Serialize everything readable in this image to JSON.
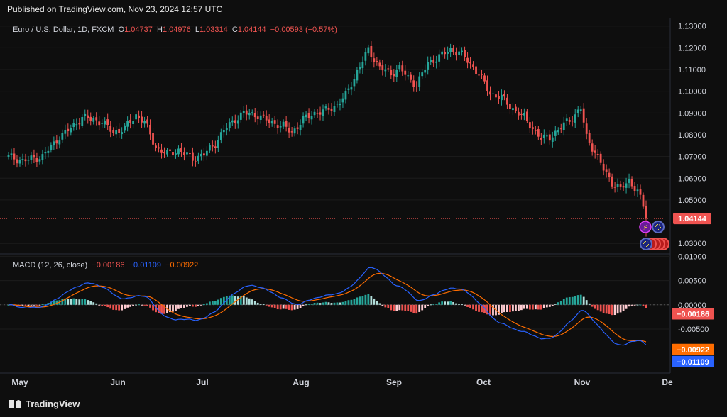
{
  "published": "Published on TradingView.com, Nov 23, 2024 12:57 UTC",
  "brand": "TradingView",
  "legend": {
    "symbol": "Euro / U.S. Dollar, 1D, FXCM",
    "o_label": "O",
    "o": "1.04737",
    "h_label": "H",
    "h": "1.04976",
    "l_label": "L",
    "l": "1.03314",
    "c_label": "C",
    "c": "1.04144",
    "change": "−0.00593 (−0.57%)"
  },
  "macd_legend": {
    "name": "MACD (12, 26, close)",
    "hist": "−0.00186",
    "macd": "−0.01109",
    "signal": "−0.00922"
  },
  "price_tag": "1.04144",
  "macd_tags": {
    "hist": "−0.00186",
    "signal": "−0.00922",
    "macd": "−0.01109"
  },
  "colors": {
    "up": "#26a69a",
    "down": "#ef5350",
    "macd": "#2962ff",
    "signal": "#ff6d00",
    "hist_pale": "#ffcdd2",
    "hist_pale_up": "#b2dfdb"
  },
  "icons": [
    "lightning-icon",
    "eu-flag-icon",
    "us-flag-icon"
  ],
  "chart_data": [
    {
      "type": "candlestick",
      "title": "Euro / U.S. Dollar, 1D, FXCM",
      "x_ticks": [
        "May",
        "Jun",
        "Jul",
        "Aug",
        "Sep",
        "Oct",
        "Nov",
        "De"
      ],
      "y_ticks": [
        "1.13000",
        "1.12000",
        "1.11000",
        "1.10000",
        "1.09000",
        "1.08000",
        "1.07000",
        "1.06000",
        "1.05000",
        "1.03000"
      ],
      "ylim": [
        1.0255,
        1.1335
      ],
      "anchors": [
        [
          0,
          1.07
        ],
        [
          5,
          1.068
        ],
        [
          12,
          1.07
        ],
        [
          18,
          1.079
        ],
        [
          22,
          1.083
        ],
        [
          26,
          1.088
        ],
        [
          33,
          1.086
        ],
        [
          37,
          1.081
        ],
        [
          41,
          1.083
        ],
        [
          45,
          1.089
        ],
        [
          48,
          1.086
        ],
        [
          52,
          1.074
        ],
        [
          56,
          1.071
        ],
        [
          60,
          1.073
        ],
        [
          65,
          1.069
        ],
        [
          69,
          1.071
        ],
        [
          73,
          1.076
        ],
        [
          76,
          1.082
        ],
        [
          79,
          1.086
        ],
        [
          83,
          1.09
        ],
        [
          88,
          1.089
        ],
        [
          92,
          1.086
        ],
        [
          97,
          1.084
        ],
        [
          100,
          1.081
        ],
        [
          104,
          1.087
        ],
        [
          108,
          1.09
        ],
        [
          112,
          1.091
        ],
        [
          116,
          1.094
        ],
        [
          119,
          1.098
        ],
        [
          123,
          1.109
        ],
        [
          127,
          1.119
        ],
        [
          131,
          1.111
        ],
        [
          135,
          1.108
        ],
        [
          138,
          1.111
        ],
        [
          141,
          1.106
        ],
        [
          144,
          1.103
        ],
        [
          148,
          1.113
        ],
        [
          152,
          1.116
        ],
        [
          156,
          1.119
        ],
        [
          159,
          1.118
        ],
        [
          162,
          1.114
        ],
        [
          166,
          1.108
        ],
        [
          170,
          1.099
        ],
        [
          174,
          1.097
        ],
        [
          178,
          1.092
        ],
        [
          182,
          1.088
        ],
        [
          185,
          1.083
        ],
        [
          188,
          1.078
        ],
        [
          191,
          1.079
        ],
        [
          194,
          1.082
        ],
        [
          197,
          1.086
        ],
        [
          200,
          1.089
        ],
        [
          202,
          1.092
        ],
        [
          204,
          1.079
        ],
        [
          207,
          1.072
        ],
        [
          210,
          1.064
        ],
        [
          213,
          1.058
        ],
        [
          216,
          1.055
        ],
        [
          219,
          1.059
        ],
        [
          222,
          1.054
        ],
        [
          224,
          1.047
        ],
        [
          225,
          1.0414
        ]
      ],
      "last": {
        "o": 1.04737,
        "h": 1.04976,
        "l": 1.03314,
        "c": 1.04144
      }
    },
    {
      "type": "macd",
      "title": "MACD (12, 26, close)",
      "y_ticks": [
        "0.01000",
        "0.00500",
        "0.00000",
        "-0.00500"
      ],
      "ylim": [
        -0.0132,
        0.0105
      ],
      "last": {
        "histogram": -0.00186,
        "macd": -0.01109,
        "signal": -0.00922
      }
    }
  ]
}
